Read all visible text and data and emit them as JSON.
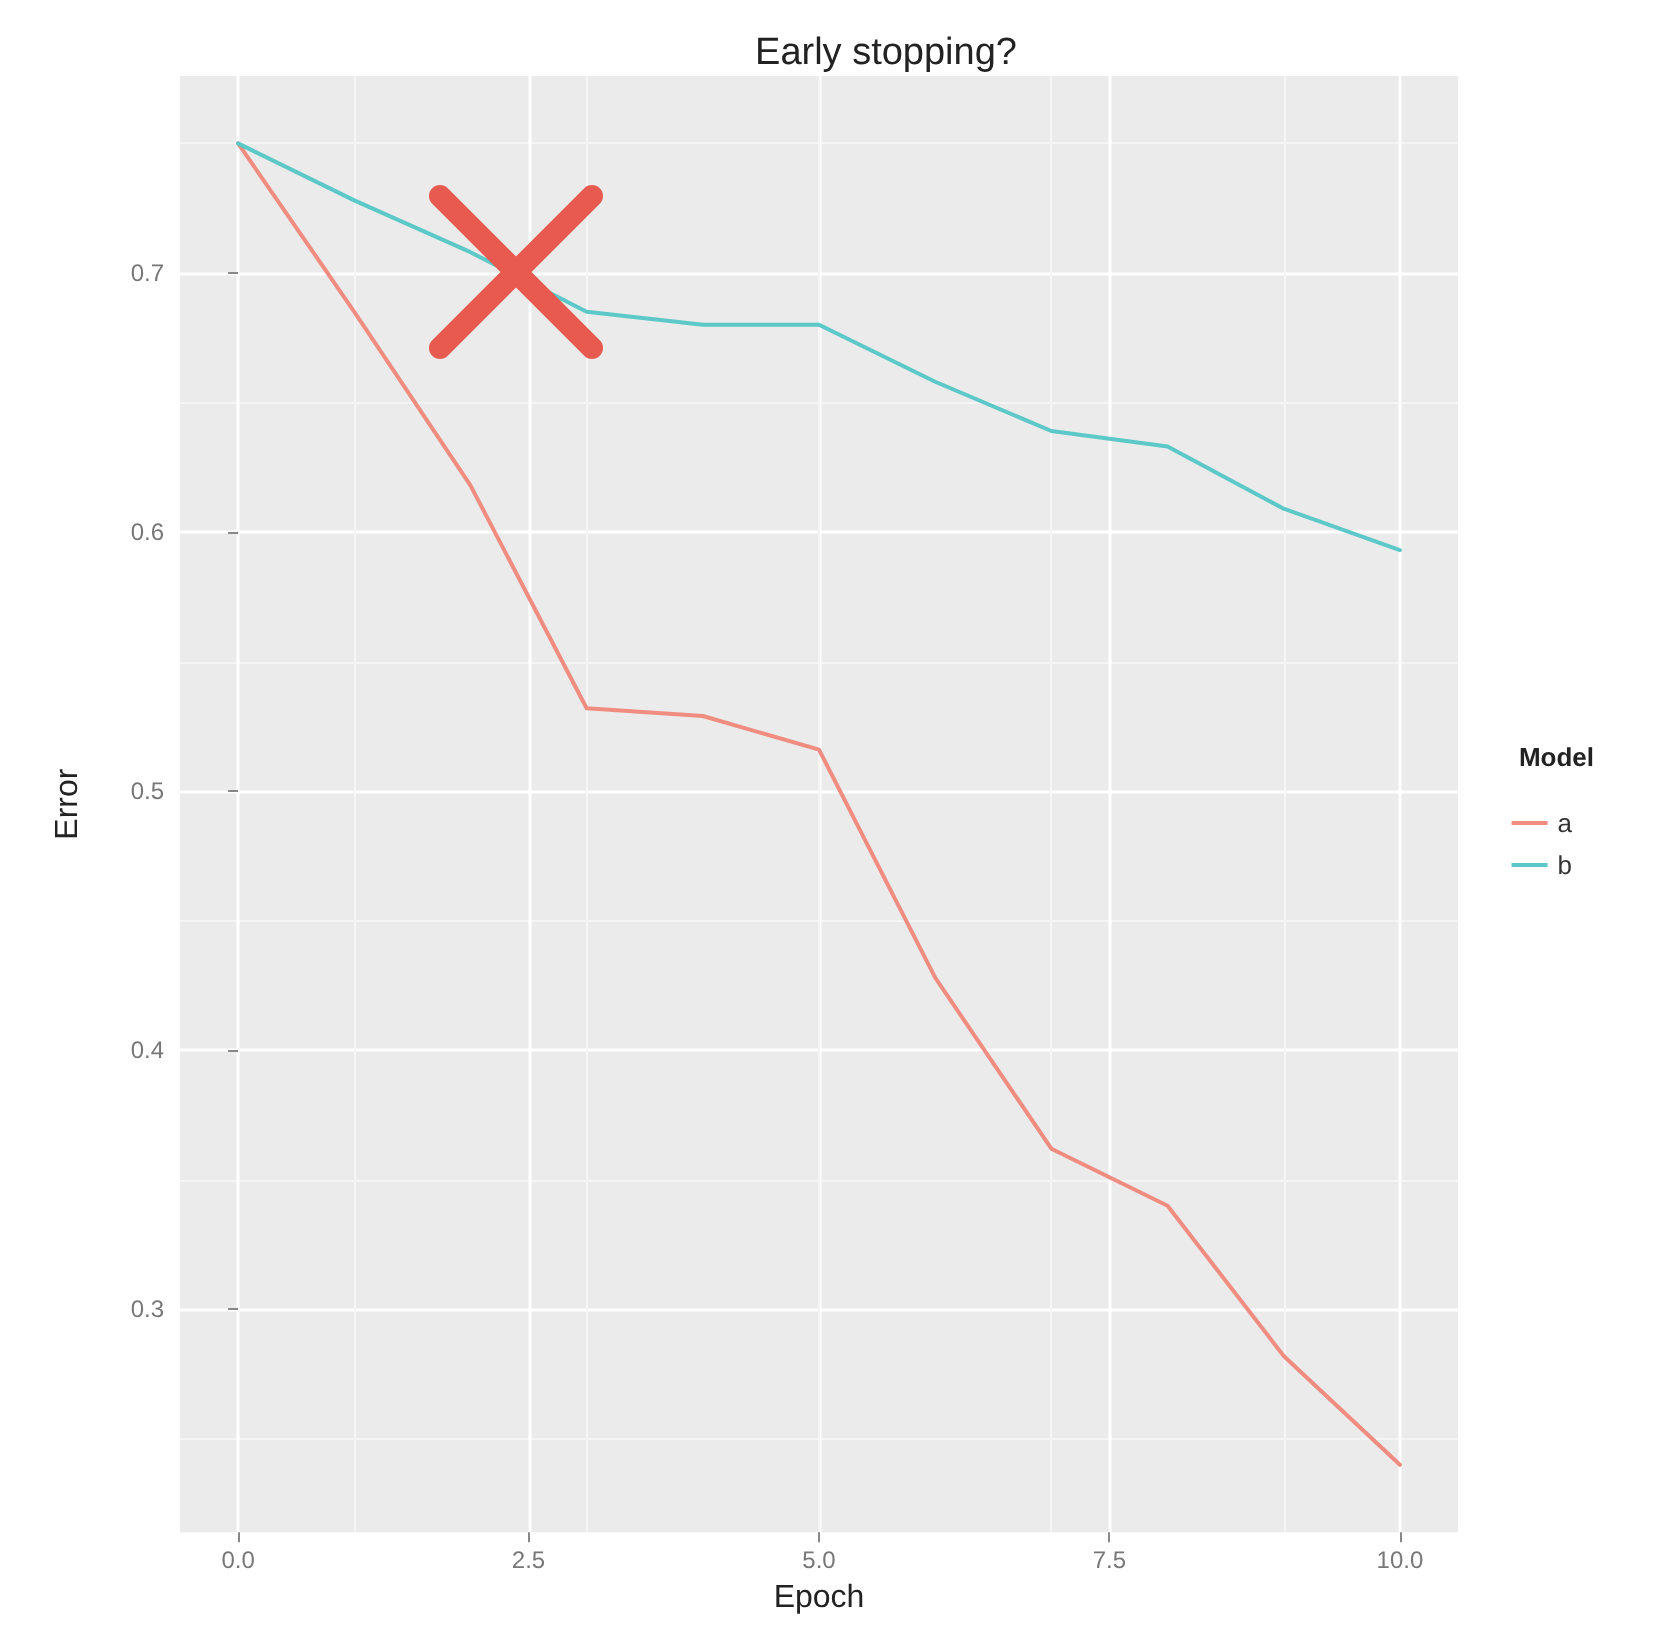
{
  "chart_data": {
    "type": "line",
    "title": "Early stopping?",
    "xlabel": "Epoch",
    "ylabel": "Error",
    "legend_title": "Model",
    "x": [
      0,
      1,
      2,
      3,
      4,
      5,
      6,
      7,
      8,
      9,
      10
    ],
    "series": [
      {
        "name": "a",
        "color": "#f08c80",
        "values": [
          0.75,
          0.685,
          0.618,
          0.532,
          0.529,
          0.516,
          0.428,
          0.362,
          0.34,
          0.282,
          0.24
        ]
      },
      {
        "name": "b",
        "color": "#5cc8c8",
        "values": [
          0.75,
          0.728,
          0.708,
          0.685,
          0.68,
          0.68,
          0.658,
          0.639,
          0.633,
          0.609,
          0.593
        ]
      }
    ],
    "xlim": [
      -0.5,
      10.5
    ],
    "xticks": [
      {
        "value": 0,
        "label": "0.0"
      },
      2.5,
      {
        "value": 5,
        "label": "5.0"
      },
      7.5,
      {
        "value": 10,
        "label": "10.0"
      }
    ],
    "ylim": [
      0.214,
      0.776
    ],
    "yticks": [
      0.3,
      0.4,
      0.5,
      0.6,
      0.7
    ],
    "grid": true,
    "legend": "right",
    "marker": "none",
    "line_style": "solid"
  }
}
